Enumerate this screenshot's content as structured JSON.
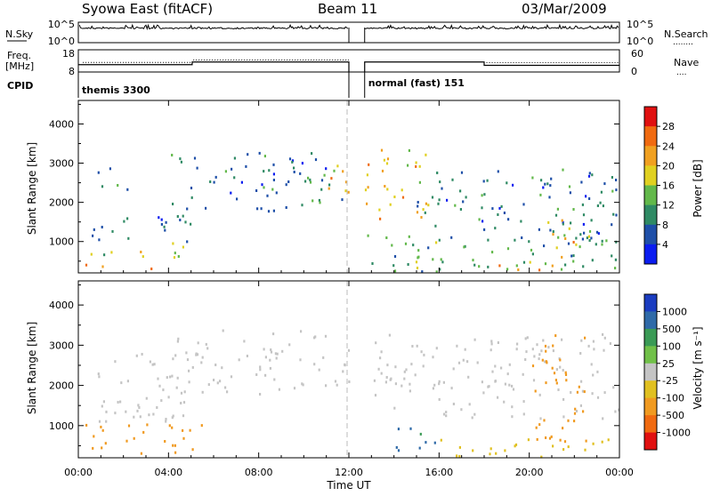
{
  "header": {
    "station": "Syowa East (fitACF)",
    "beam": "Beam 11",
    "date": "03/Mar/2009"
  },
  "strip_labels": {
    "nsky": "N.Sky",
    "nsearch": "N.Search",
    "nsearch_dots": "........",
    "freq_line1": "Freq.",
    "freq_line2": "[MHz]",
    "nave": "Nave",
    "nave_dots": "....",
    "cpid": "CPID",
    "noise_ticks": [
      "10^5",
      "10^0"
    ],
    "freq_ticks": [
      "18",
      "8"
    ],
    "nave_ticks": [
      "60",
      "0"
    ]
  },
  "cpid_segments": [
    {
      "label": "themis 3300",
      "start_h": 0,
      "end_h": 12.0
    },
    {
      "label": "normal (fast) 151",
      "start_h": 12.7,
      "end_h": 24
    }
  ],
  "time_axis": {
    "label": "Time UT",
    "ticks": [
      "00:00",
      "04:00",
      "08:00",
      "12:00",
      "16:00",
      "20:00",
      "00:00"
    ],
    "tick_hours": [
      0,
      4,
      8,
      12,
      16,
      20,
      24
    ]
  },
  "range_axis": {
    "label": "Slant Range [km]",
    "ticks": [
      "1000",
      "2000",
      "3000",
      "4000"
    ],
    "tick_values": [
      1000,
      2000,
      3000,
      4000
    ],
    "range": [
      200,
      4600
    ]
  },
  "power_scale": {
    "label": "Power [dB]",
    "ticks": [
      "4",
      "8",
      "12",
      "16",
      "20",
      "24",
      "28"
    ],
    "colors": [
      "#0a1cf0",
      "#1e4fa8",
      "#2f8a64",
      "#62b84a",
      "#e0d020",
      "#f0a020",
      "#f06a10",
      "#e01010"
    ]
  },
  "velocity_scale": {
    "label": "Velocity [m s⁻¹]",
    "ticks": [
      "1000",
      "500",
      "100",
      "25",
      "-25",
      "-100",
      "-500",
      "-1000"
    ],
    "colors": [
      "#1a3cc0",
      "#2f6aa8",
      "#3a9a55",
      "#70c048",
      "#c4c4c4",
      "#e0c020",
      "#f09a20",
      "#f06a10",
      "#e01010"
    ]
  },
  "chart_data": [
    {
      "type": "heatmap",
      "title": "",
      "xlabel": "Time UT",
      "ylabel": "Slant Range [km]",
      "quantity": "Power [dB]",
      "xlim": [
        "00:00",
        "24:00"
      ],
      "ylim": [
        200,
        4600
      ],
      "data_gap": [
        "12:00",
        "12:40"
      ],
      "regions": [
        {
          "t_start": 0.2,
          "t_end": 3.5,
          "r_min": 300,
          "r_max": 450,
          "value": 24
        },
        {
          "t_start": 0.3,
          "t_end": 5.0,
          "r_min": 600,
          "r_max": 1000,
          "value": 16
        },
        {
          "t_start": 0.5,
          "t_end": 5.0,
          "r_min": 1000,
          "r_max": 1800,
          "value": 8
        },
        {
          "t_start": 0.8,
          "t_end": 2.2,
          "r_min": 2300,
          "r_max": 2900,
          "value": 8
        },
        {
          "t_start": 4.0,
          "t_end": 11.8,
          "r_min": 1800,
          "r_max": 3300,
          "value": 8
        },
        {
          "t_start": 10.5,
          "t_end": 12.0,
          "r_min": 2200,
          "r_max": 3100,
          "value": 20
        },
        {
          "t_start": 12.7,
          "t_end": 15.5,
          "r_min": 1600,
          "r_max": 3500,
          "value": 20
        },
        {
          "t_start": 12.7,
          "t_end": 24.0,
          "r_min": 250,
          "r_max": 1200,
          "value": 12
        },
        {
          "t_start": 15.0,
          "t_end": 24.0,
          "r_min": 1000,
          "r_max": 2900,
          "value": 8
        },
        {
          "t_start": 18.5,
          "t_end": 22.0,
          "r_min": 250,
          "r_max": 450,
          "value": 24
        },
        {
          "t_start": 20.5,
          "t_end": 22.2,
          "r_min": 400,
          "r_max": 1600,
          "value": 20
        }
      ]
    },
    {
      "type": "heatmap",
      "title": "",
      "xlabel": "Time UT",
      "ylabel": "Slant Range [km]",
      "quantity": "Velocity [m s-1]",
      "xlim": [
        "00:00",
        "24:00"
      ],
      "ylim": [
        200,
        4600
      ],
      "data_gap": [
        "12:00",
        "12:40"
      ],
      "regions": [
        {
          "t_start": 0.2,
          "t_end": 5.5,
          "r_min": 300,
          "r_max": 1100,
          "value": -300
        },
        {
          "t_start": 0.5,
          "t_end": 5.0,
          "r_min": 1100,
          "r_max": 2900,
          "value": 0
        },
        {
          "t_start": 4.0,
          "t_end": 12.0,
          "r_min": 1800,
          "r_max": 3400,
          "value": 0
        },
        {
          "t_start": 12.7,
          "t_end": 24.0,
          "r_min": 1200,
          "r_max": 3300,
          "value": 0
        },
        {
          "t_start": 14.0,
          "t_end": 16.0,
          "r_min": 400,
          "r_max": 1100,
          "value": 600
        },
        {
          "t_start": 16.0,
          "t_end": 24.0,
          "r_min": 250,
          "r_max": 700,
          "value": -60
        },
        {
          "t_start": 20.0,
          "t_end": 22.5,
          "r_min": 600,
          "r_max": 3300,
          "value": -300
        }
      ]
    }
  ]
}
